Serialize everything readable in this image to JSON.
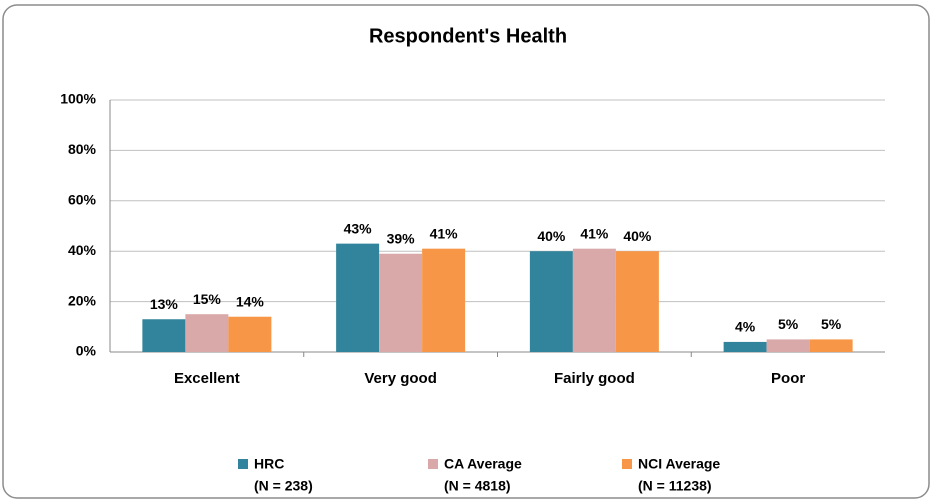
{
  "chart_data": {
    "type": "bar",
    "title": "Respondent's Health",
    "categories": [
      "Excellent",
      "Very good",
      "Fairly good",
      "Poor"
    ],
    "series": [
      {
        "name": "HRC",
        "sample": "(N = 238)",
        "color": "#31849b",
        "values": [
          13,
          43,
          40,
          4
        ],
        "value_labels": [
          "13%",
          "43%",
          "40%",
          "4%"
        ]
      },
      {
        "name": "CA Average",
        "sample": "(N = 4818)",
        "color": "#d9a9aa",
        "values": [
          15,
          39,
          41,
          5
        ],
        "value_labels": [
          "15%",
          "39%",
          "41%",
          "5%"
        ]
      },
      {
        "name": "NCI Average",
        "sample": "(N = 11238)",
        "color": "#f79646",
        "values": [
          14,
          41,
          40,
          5
        ],
        "value_labels": [
          "14%",
          "41%",
          "40%",
          "5%"
        ]
      }
    ],
    "ylim": [
      0,
      100
    ],
    "yticks": [
      {
        "value": 0,
        "label": "0%"
      },
      {
        "value": 20,
        "label": "20%"
      },
      {
        "value": 40,
        "label": "40%"
      },
      {
        "value": 60,
        "label": "60%"
      },
      {
        "value": 80,
        "label": "80%"
      },
      {
        "value": 100,
        "label": "100%"
      }
    ],
    "grid": true,
    "legend": "bottom"
  }
}
